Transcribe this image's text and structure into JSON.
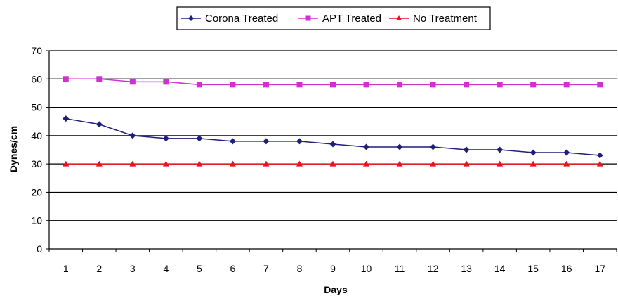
{
  "chart_data": {
    "type": "line",
    "x": [
      1,
      2,
      3,
      4,
      5,
      6,
      7,
      8,
      9,
      10,
      11,
      12,
      13,
      14,
      15,
      16,
      17
    ],
    "xlabel": "Days",
    "ylabel": "Dynes/cm",
    "ylim": [
      0,
      70
    ],
    "yticks": [
      0,
      10,
      20,
      30,
      40,
      50,
      60,
      70
    ],
    "grid": true,
    "legend_position": "top",
    "series": [
      {
        "name": "Corona Treated",
        "color": "#1f1f7a",
        "marker": "diamond",
        "values": [
          46,
          44,
          40,
          39,
          39,
          38,
          38,
          38,
          37,
          36,
          36,
          36,
          35,
          35,
          34,
          34,
          33
        ]
      },
      {
        "name": "APT Treated",
        "color": "#cc33cc",
        "marker": "square",
        "values": [
          60,
          60,
          59,
          59,
          58,
          58,
          58,
          58,
          58,
          58,
          58,
          58,
          58,
          58,
          58,
          58,
          58
        ]
      },
      {
        "name": "No Treatment",
        "color": "#e8141c",
        "marker": "triangle",
        "values": [
          30,
          30,
          30,
          30,
          30,
          30,
          30,
          30,
          30,
          30,
          30,
          30,
          30,
          30,
          30,
          30,
          30
        ]
      }
    ]
  }
}
